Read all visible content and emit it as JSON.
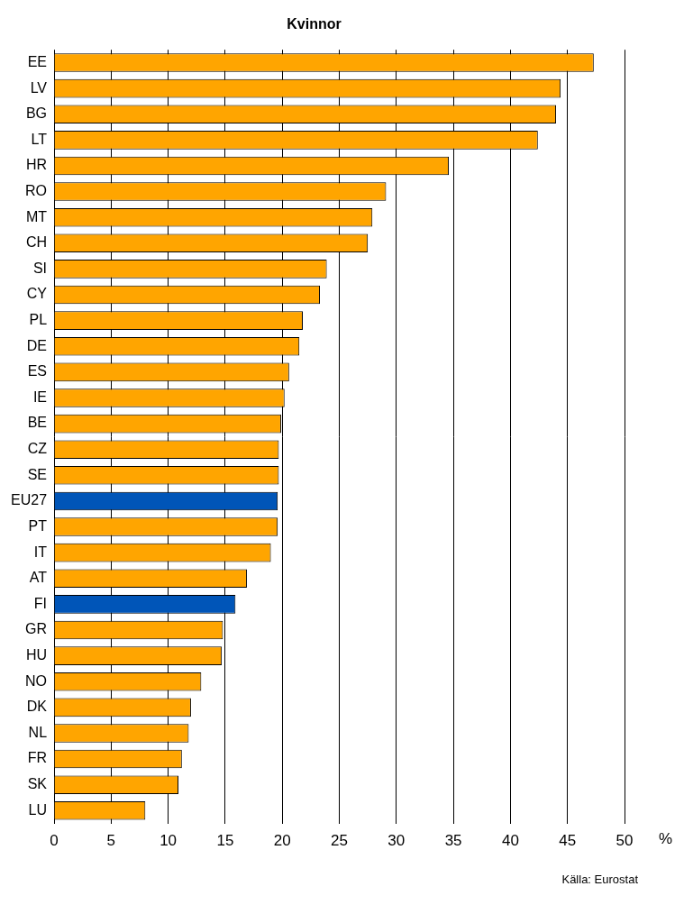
{
  "chart_data": {
    "type": "bar",
    "orientation": "horizontal",
    "title": "Kvinnor",
    "x_label": "%",
    "annotation": "Källa: Eurostat",
    "categories": [
      "EE",
      "LV",
      "BG",
      "LT",
      "HR",
      "RO",
      "MT",
      "CH",
      "SI",
      "CY",
      "PL",
      "DE",
      "ES",
      "IE",
      "BE",
      "CZ",
      "SE",
      "EU27",
      "PT",
      "IT",
      "AT",
      "FI",
      "GR",
      "HU",
      "NO",
      "DK",
      "NL",
      "FR",
      "SK",
      "LU"
    ],
    "values": [
      47.3,
      44.4,
      44.0,
      42.4,
      34.6,
      29.1,
      27.9,
      27.5,
      23.9,
      23.3,
      21.8,
      21.5,
      20.6,
      20.2,
      19.9,
      19.7,
      19.7,
      19.6,
      19.6,
      19.0,
      16.9,
      15.9,
      14.8,
      14.7,
      12.9,
      12.0,
      11.8,
      11.2,
      10.9,
      8.0
    ],
    "colors": [
      "#ffa500",
      "#ffa500",
      "#ffa500",
      "#ffa500",
      "#ffa500",
      "#ffa500",
      "#ffa500",
      "#ffa500",
      "#ffa500",
      "#ffa500",
      "#ffa500",
      "#ffa500",
      "#ffa500",
      "#ffa500",
      "#ffa500",
      "#ffa500",
      "#ffa500",
      "#0055b8",
      "#ffa500",
      "#ffa500",
      "#ffa500",
      "#0055b8",
      "#ffa500",
      "#ffa500",
      "#ffa500",
      "#ffa500",
      "#ffa500",
      "#ffa500",
      "#ffa500",
      "#ffa500"
    ],
    "xlim": [
      0,
      50
    ],
    "xticks": [
      0,
      5,
      10,
      15,
      20,
      25,
      30,
      35,
      40,
      45,
      50
    ],
    "grid": true,
    "data_labels": false
  }
}
